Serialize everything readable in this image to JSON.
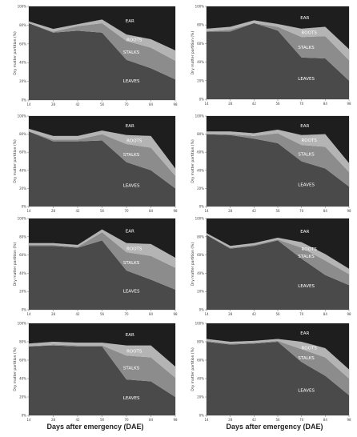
{
  "figure": {
    "xlabel": "Days after emergency (DAE)"
  },
  "style": {
    "colors": {
      "LEAVES": "#4a4a4a",
      "STALKS": "#8c8c8c",
      "ROOTS": "#b4b4b4",
      "EAR": "#1e1e1e"
    },
    "stack_order": [
      "LEAVES",
      "STALKS",
      "ROOTS",
      "EAR"
    ],
    "label_color": "#ffffff"
  },
  "chart_data": [
    {
      "type": "area",
      "x": [
        14,
        28,
        42,
        56,
        70,
        84,
        98
      ],
      "xticks": [
        "14",
        "28",
        "42",
        "56",
        "70",
        "84",
        "98"
      ],
      "yticks": [
        "0%",
        "20%",
        "40%",
        "60%",
        "80%",
        "100%"
      ],
      "ylabel": "Dry matter partition (%)",
      "ylim": [
        0,
        100
      ],
      "series": [
        {
          "name": "LEAVES",
          "values": [
            82,
            72,
            74,
            72,
            43,
            34,
            22
          ]
        },
        {
          "name": "STALKS",
          "values": [
            0,
            1,
            5,
            10,
            20,
            22,
            20
          ]
        },
        {
          "name": "ROOTS",
          "values": [
            2,
            3,
            2,
            4,
            7,
            9,
            11
          ]
        },
        {
          "name": "EAR",
          "values": [
            16,
            24,
            19,
            14,
            30,
            35,
            47
          ]
        }
      ]
    },
    {
      "type": "area",
      "x": [
        14,
        28,
        42,
        56,
        70,
        84,
        98
      ],
      "xticks": [
        "14",
        "28",
        "42",
        "56",
        "70",
        "84",
        "98"
      ],
      "yticks": [
        "0%",
        "20%",
        "40%",
        "60%",
        "80%",
        "100%"
      ],
      "ylabel": "Dry matter partition (%)",
      "ylim": [
        0,
        100
      ],
      "series": [
        {
          "name": "LEAVES",
          "values": [
            73,
            73,
            82,
            74,
            45,
            44,
            20
          ]
        },
        {
          "name": "STALKS",
          "values": [
            0,
            2,
            0,
            4,
            22,
            24,
            22
          ]
        },
        {
          "name": "ROOTS",
          "values": [
            3,
            3,
            3,
            3,
            9,
            10,
            12
          ]
        },
        {
          "name": "EAR",
          "values": [
            24,
            22,
            15,
            19,
            24,
            22,
            46
          ]
        }
      ]
    },
    {
      "type": "area",
      "x": [
        14,
        28,
        42,
        56,
        70,
        84,
        98
      ],
      "xticks": [
        "14",
        "28",
        "42",
        "56",
        "70",
        "84",
        "98"
      ],
      "yticks": [
        "0%",
        "20%",
        "40%",
        "60%",
        "80%",
        "100%"
      ],
      "ylabel": "Dry matter partition (%)",
      "ylim": [
        0,
        100
      ],
      "series": [
        {
          "name": "LEAVES",
          "values": [
            83,
            72,
            72,
            73,
            49,
            40,
            20
          ]
        },
        {
          "name": "STALKS",
          "values": [
            0,
            2,
            2,
            7,
            20,
            25,
            14
          ]
        },
        {
          "name": "ROOTS",
          "values": [
            3,
            4,
            4,
            4,
            10,
            13,
            8
          ]
        },
        {
          "name": "EAR",
          "values": [
            14,
            22,
            22,
            16,
            21,
            22,
            58
          ]
        }
      ]
    },
    {
      "type": "area",
      "x": [
        14,
        28,
        42,
        56,
        70,
        84,
        98
      ],
      "xticks": [
        "14",
        "28",
        "42",
        "56",
        "70",
        "84",
        "98"
      ],
      "yticks": [
        "0%",
        "20%",
        "40%",
        "60%",
        "80%",
        "100%"
      ],
      "ylabel": "Dry matter partition (%)",
      "ylim": [
        0,
        100
      ],
      "series": [
        {
          "name": "LEAVES",
          "values": [
            80,
            79,
            75,
            70,
            50,
            42,
            22
          ]
        },
        {
          "name": "STALKS",
          "values": [
            0,
            1,
            3,
            11,
            18,
            24,
            16
          ]
        },
        {
          "name": "ROOTS",
          "values": [
            3,
            3,
            3,
            4,
            11,
            14,
            10
          ]
        },
        {
          "name": "EAR",
          "values": [
            17,
            17,
            19,
            15,
            21,
            20,
            52
          ]
        }
      ]
    },
    {
      "type": "area",
      "x": [
        14,
        28,
        42,
        56,
        70,
        84,
        98
      ],
      "xticks": [
        "14",
        "28",
        "42",
        "56",
        "70",
        "84",
        "98"
      ],
      "yticks": [
        "0%",
        "20%",
        "40%",
        "60%",
        "80%",
        "100%"
      ],
      "ylabel": "Dry matter partition (%)",
      "ylim": [
        0,
        100
      ],
      "series": [
        {
          "name": "LEAVES",
          "values": [
            70,
            70,
            68,
            76,
            43,
            33,
            22
          ]
        },
        {
          "name": "STALKS",
          "values": [
            1,
            1,
            1,
            9,
            20,
            26,
            24
          ]
        },
        {
          "name": "ROOTS",
          "values": [
            2,
            2,
            2,
            3,
            10,
            13,
            11
          ]
        },
        {
          "name": "EAR",
          "values": [
            27,
            27,
            29,
            12,
            27,
            28,
            43
          ]
        }
      ]
    },
    {
      "type": "area",
      "x": [
        14,
        28,
        42,
        56,
        70,
        84,
        98
      ],
      "xticks": [
        "14",
        "28",
        "42",
        "56",
        "70",
        "84",
        "98"
      ],
      "yticks": [
        "0%",
        "20%",
        "40%",
        "60%",
        "80%",
        "100%"
      ],
      "ylabel": "Dry matter partition (%)",
      "ylim": [
        0,
        100
      ],
      "series": [
        {
          "name": "LEAVES",
          "values": [
            82,
            67,
            70,
            76,
            56,
            38,
            27
          ]
        },
        {
          "name": "STALKS",
          "values": [
            0,
            1,
            1,
            1,
            12,
            16,
            12
          ]
        },
        {
          "name": "ROOTS",
          "values": [
            2,
            2,
            2,
            2,
            6,
            7,
            6
          ]
        },
        {
          "name": "EAR",
          "values": [
            16,
            30,
            27,
            21,
            26,
            39,
            55
          ]
        }
      ]
    },
    {
      "type": "area",
      "x": [
        14,
        28,
        42,
        56,
        70,
        84,
        98
      ],
      "xticks": [
        "14",
        "28",
        "42",
        "56",
        "70",
        "84",
        "98"
      ],
      "yticks": [
        "0%",
        "20%",
        "40%",
        "60%",
        "80%",
        "100%"
      ],
      "ylabel": "Dry matter partition (%)",
      "ylim": [
        0,
        100
      ],
      "series": [
        {
          "name": "LEAVES",
          "values": [
            75,
            76,
            75,
            75,
            39,
            37,
            20
          ]
        },
        {
          "name": "STALKS",
          "values": [
            0,
            1,
            1,
            1,
            26,
            26,
            21
          ]
        },
        {
          "name": "ROOTS",
          "values": [
            3,
            3,
            3,
            3,
            11,
            13,
            12
          ]
        },
        {
          "name": "EAR",
          "values": [
            22,
            20,
            21,
            21,
            24,
            24,
            47
          ]
        }
      ]
    },
    {
      "type": "area",
      "x": [
        14,
        28,
        42,
        56,
        70,
        84,
        98
      ],
      "xticks": [
        "14",
        "28",
        "42",
        "56",
        "70",
        "84",
        "98"
      ],
      "yticks": [
        "0%",
        "20%",
        "40%",
        "60%",
        "80%",
        "100%"
      ],
      "ylabel": "Dry matter partition (%)",
      "ylim": [
        0,
        100
      ],
      "series": [
        {
          "name": "LEAVES",
          "values": [
            80,
            77,
            78,
            80,
            58,
            43,
            22
          ]
        },
        {
          "name": "STALKS",
          "values": [
            1,
            1,
            1,
            1,
            14,
            20,
            18
          ]
        },
        {
          "name": "ROOTS",
          "values": [
            2,
            2,
            2,
            2,
            8,
            10,
            10
          ]
        },
        {
          "name": "EAR",
          "values": [
            17,
            20,
            19,
            17,
            20,
            27,
            50
          ]
        }
      ]
    }
  ]
}
